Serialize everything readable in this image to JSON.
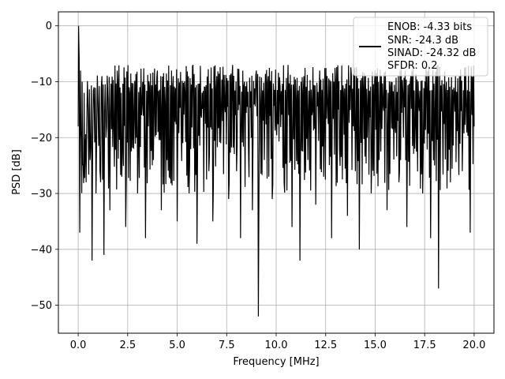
{
  "chart_data": {
    "type": "line",
    "title": "",
    "xlabel": "Frequency [MHz]",
    "ylabel": "PSD [dB]",
    "xlim": [
      -1.0,
      21.0
    ],
    "ylim": [
      -55.0,
      2.5
    ],
    "xticks": [
      0.0,
      2.5,
      5.0,
      7.5,
      10.0,
      12.5,
      15.0,
      17.5,
      20.0
    ],
    "xtick_labels": [
      "0.0",
      "2.5",
      "5.0",
      "7.5",
      "10.0",
      "12.5",
      "15.0",
      "17.5",
      "20.0"
    ],
    "yticks": [
      0,
      -10,
      -20,
      -30,
      -40,
      -50
    ],
    "ytick_labels": [
      "0",
      "−10",
      "−20",
      "−30",
      "−40",
      "−50"
    ],
    "grid": true,
    "legend_position": "top-right",
    "legend": {
      "lines": [
        "ENOB: -4.33 bits",
        "SNR: -24.3 dB",
        "SINAD: -24.32 dB",
        "SFDR: 0.2"
      ]
    },
    "series": [
      {
        "color": "#000000",
        "note": "dense noisy spectrum, points sampled approximately",
        "x": [
          0.0,
          0.02,
          0.05,
          0.08,
          0.12,
          0.16,
          0.2,
          0.25,
          0.3,
          0.35,
          0.4,
          0.5,
          0.6,
          0.7,
          0.8,
          0.9,
          1.0,
          1.1,
          1.2,
          1.3,
          1.4,
          1.5,
          1.6,
          1.8,
          2.0,
          2.2,
          2.4,
          2.6,
          2.8,
          3.0,
          3.2,
          3.4,
          3.6,
          3.8,
          4.0,
          4.2,
          4.4,
          4.6,
          4.8,
          5.0,
          5.2,
          5.4,
          5.6,
          5.8,
          6.0,
          6.2,
          6.4,
          6.6,
          6.8,
          7.0,
          7.2,
          7.4,
          7.6,
          7.8,
          8.0,
          8.2,
          8.4,
          8.6,
          8.8,
          9.0,
          9.1,
          9.2,
          9.4,
          9.6,
          9.8,
          10.0,
          10.2,
          10.4,
          10.6,
          10.8,
          11.0,
          11.2,
          11.4,
          11.6,
          11.8,
          12.0,
          12.2,
          12.4,
          12.6,
          12.8,
          13.0,
          13.2,
          13.4,
          13.6,
          13.8,
          14.0,
          14.2,
          14.4,
          14.6,
          14.8,
          15.0,
          15.2,
          15.4,
          15.6,
          15.8,
          16.0,
          16.2,
          16.4,
          16.6,
          16.8,
          17.0,
          17.2,
          17.4,
          17.6,
          17.8,
          18.0,
          18.2,
          18.4,
          18.6,
          18.8,
          19.0,
          19.2,
          19.4,
          19.6,
          19.8,
          20.0
        ],
        "y": [
          -18,
          0,
          -6,
          -37,
          -8,
          -20,
          -10,
          -25,
          -12,
          -22,
          -28,
          -15,
          -24,
          -42,
          -11,
          -30,
          -14,
          -26,
          -9,
          -41,
          -20,
          -13,
          -33,
          -18,
          -10,
          -27,
          -36,
          -12,
          -22,
          -30,
          -16,
          -38,
          -11,
          -24,
          -8,
          -33,
          -14,
          -27,
          -9,
          -35,
          -18,
          -12,
          -30,
          -7,
          -39,
          -16,
          -11,
          -26,
          -35,
          -9,
          -21,
          -14,
          -31,
          -7,
          -26,
          -38,
          -10,
          -22,
          -33,
          -8,
          -52,
          -14,
          -24,
          -9,
          -31,
          -18,
          -11,
          -28,
          -7,
          -36,
          -13,
          -42,
          -9,
          -24,
          -16,
          -32,
          -8,
          -27,
          -14,
          -38,
          -10,
          -22,
          -12,
          -34,
          -9,
          -26,
          -40,
          -11,
          -20,
          -30,
          -8,
          -24,
          -14,
          -33,
          -10,
          -18,
          -28,
          -12,
          -36,
          -9,
          -22,
          -14,
          -30,
          -11,
          -38,
          -25,
          -47,
          -16,
          -10,
          -28,
          -12,
          -20,
          -26,
          -14,
          -37,
          -18
        ]
      }
    ]
  }
}
